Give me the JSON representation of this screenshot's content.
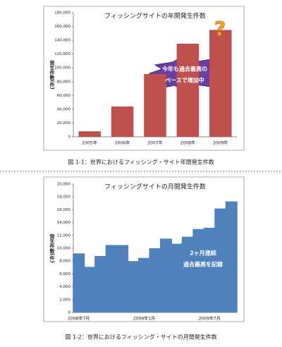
{
  "chart_data": [
    {
      "type": "bar",
      "title": "フィッシングサイトの年間発生件数",
      "ylabel": "発生件数(件)",
      "categories": [
        "2005年",
        "2006年",
        "2007年",
        "2008年",
        "2009年"
      ],
      "values": [
        8000,
        44000,
        91000,
        135000,
        155000
      ],
      "color": "#c0504d",
      "ylim": [
        0,
        180000
      ],
      "yticks": [
        0,
        {
          "value": 20000,
          "label": "20,000"
        },
        {
          "value": 40000,
          "label": "40,000"
        },
        {
          "value": 60000,
          "label": "60,000"
        },
        {
          "value": 80000,
          "label": "80,000"
        },
        {
          "value": 100000,
          "label": "100,000"
        },
        {
          "value": 120000,
          "label": "120,000"
        },
        {
          "value": 140000,
          "label": "140,000"
        },
        {
          "value": 160000,
          "label": "160,000"
        },
        {
          "value": 180000,
          "label": "180,000"
        }
      ],
      "grid": false,
      "annotation": [
        "今年も過去最高の",
        "ペースで増加中"
      ],
      "icon": "?",
      "caption": "図 1-1：世界におけるフィッシング・サイト年間発生件数"
    },
    {
      "type": "bar",
      "title": "フィッシングサイトの月間発生件数",
      "ylabel": "発生件数(件)",
      "categories": [
        "2008年7月",
        null,
        null,
        null,
        null,
        null,
        "2009年1月",
        null,
        null,
        null,
        null,
        null,
        "2009年7月",
        null,
        null
      ],
      "values": [
        9200,
        7100,
        8800,
        10500,
        10500,
        8000,
        8500,
        10000,
        11500,
        10700,
        11800,
        13000,
        13200,
        16200,
        17300
      ],
      "color": "#4f81bd",
      "ylim": [
        0,
        20000
      ],
      "yticks": [
        0,
        {
          "value": 2000,
          "label": "2,000"
        },
        {
          "value": 4000,
          "label": "4,000"
        },
        {
          "value": 6000,
          "label": "6,000"
        },
        {
          "value": 8000,
          "label": "8,000"
        },
        {
          "value": 10000,
          "label": "10,000"
        },
        {
          "value": 12000,
          "label": "12,000"
        },
        {
          "value": 14000,
          "label": "14,000"
        },
        {
          "value": 16000,
          "label": "16,000"
        },
        {
          "value": 18000,
          "label": "18,000"
        },
        {
          "value": 20000,
          "label": "20,000"
        }
      ],
      "grid": false,
      "annotation": [
        "2ヶ月連続",
        "過去最高を記録"
      ],
      "caption": "図 1-2：世界におけるフィッシング・サイトの月間発生件数"
    }
  ]
}
